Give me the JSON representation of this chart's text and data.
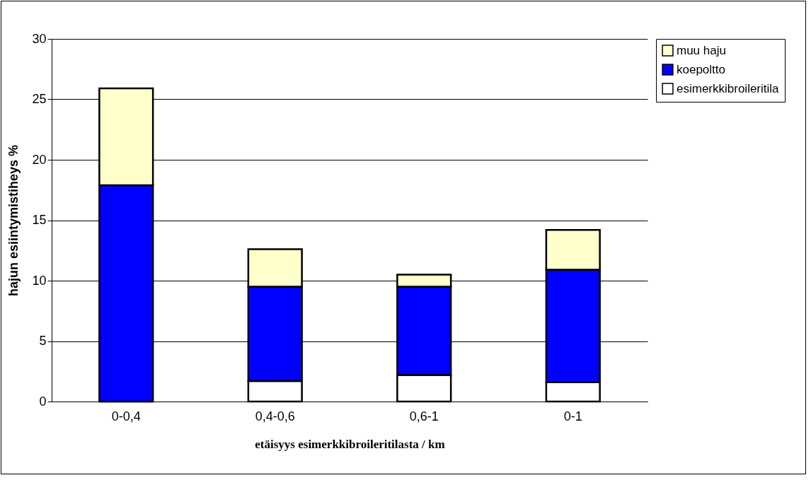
{
  "chart_data": {
    "type": "bar",
    "stacked": true,
    "xlabel": "etäisyys  esimerkkibroileritilasta / km",
    "ylabel": "hajun esiintymistiheys %",
    "categories": [
      "0-0,4",
      "0,4-0,6",
      "0,6-1",
      "0-1"
    ],
    "series": [
      {
        "name": "esimerkkibroileritila",
        "color": "#ffffff",
        "values": [
          0,
          1.7,
          2.2,
          1.6
        ]
      },
      {
        "name": "koepoltto",
        "color": "#0000ff",
        "values": [
          17.9,
          7.8,
          7.3,
          9.3
        ]
      },
      {
        "name": "muu haju",
        "color": "#ffffcc",
        "values": [
          8.0,
          3.1,
          1.0,
          3.3
        ]
      }
    ],
    "ylim": [
      0,
      30
    ],
    "yticks": [
      0,
      5,
      10,
      15,
      20,
      25,
      30
    ],
    "grid": "y",
    "legend": "right"
  }
}
